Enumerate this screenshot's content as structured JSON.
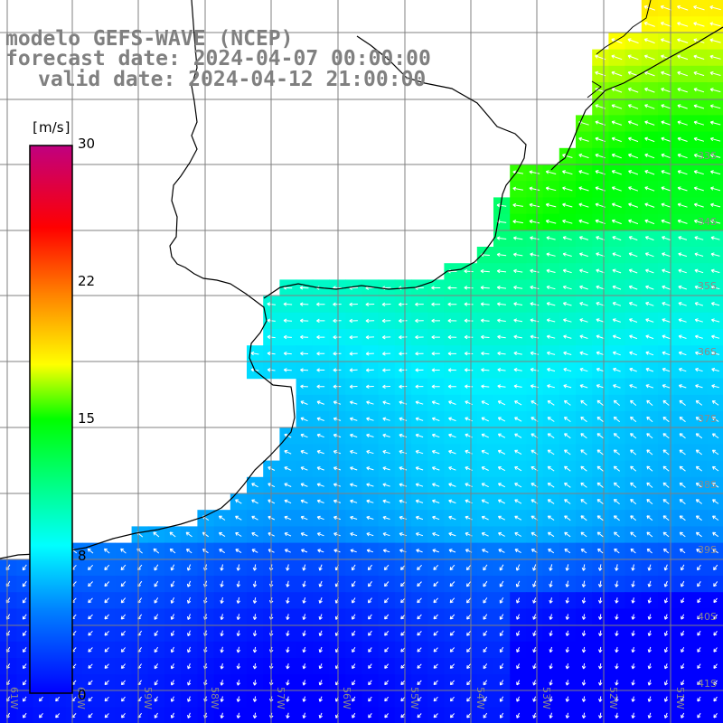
{
  "header": {
    "model": "modelo GEFS-WAVE (NCEP)",
    "forecast": "forecast date: 2024-04-07 00:00:00",
    "valid": "valid date: 2024-04-12 21:00:00"
  },
  "colorbar": {
    "unit": "m/s",
    "ticks": [
      "30",
      "22",
      "15",
      "8",
      "0"
    ],
    "tick_values": [
      30,
      22,
      15,
      8,
      0
    ],
    "colors": [
      "#0000ff",
      "#00a0ff",
      "#00ffff",
      "#00ff00",
      "#ffff00",
      "#ff7f00",
      "#ff0000",
      "#c00080"
    ]
  },
  "map": {
    "lon_labels": [
      "61W",
      "60W",
      "59W",
      "58W",
      "57W",
      "56W",
      "55W",
      "54W",
      "53W",
      "52W",
      "51W"
    ],
    "lat_labels": [
      "33S",
      "34S",
      "35S",
      "36S",
      "37S",
      "38S",
      "39S",
      "40S",
      "41S"
    ],
    "land_color": "#ffffff",
    "coast_color": "#000000"
  }
}
